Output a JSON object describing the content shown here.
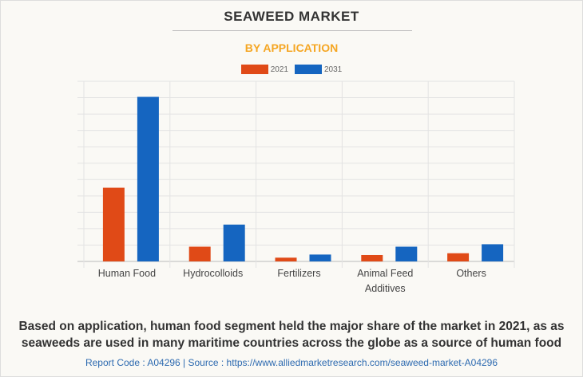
{
  "title": "SEAWEED MARKET",
  "subtitle": "BY APPLICATION",
  "chart_data": {
    "type": "bar",
    "categories": [
      [
        "Human Food"
      ],
      [
        "Hydrocolloids"
      ],
      [
        "Fertilizers"
      ],
      [
        "Animal Feed",
        "Additives"
      ],
      " Others"
    ],
    "series": [
      {
        "name": "2021",
        "color": "#e04a17",
        "values": [
          4.5,
          0.9,
          0.23,
          0.39,
          0.5
        ]
      },
      {
        "name": "2031",
        "color": "#1565c0",
        "values": [
          10.05,
          2.25,
          0.42,
          0.9,
          1.05
        ]
      }
    ],
    "ylim": [
      0,
      11
    ],
    "grid": true,
    "legend": "top"
  },
  "caption": [
    "Based on application, human food segment held the major share of the market in 2021, as as",
    "seaweeds are used in many maritime countries across the globe as a source of human food"
  ],
  "footer": "Report Code : A04296  |  Source : https://www.alliedmarketresearch.com/seaweed-market-A04296"
}
